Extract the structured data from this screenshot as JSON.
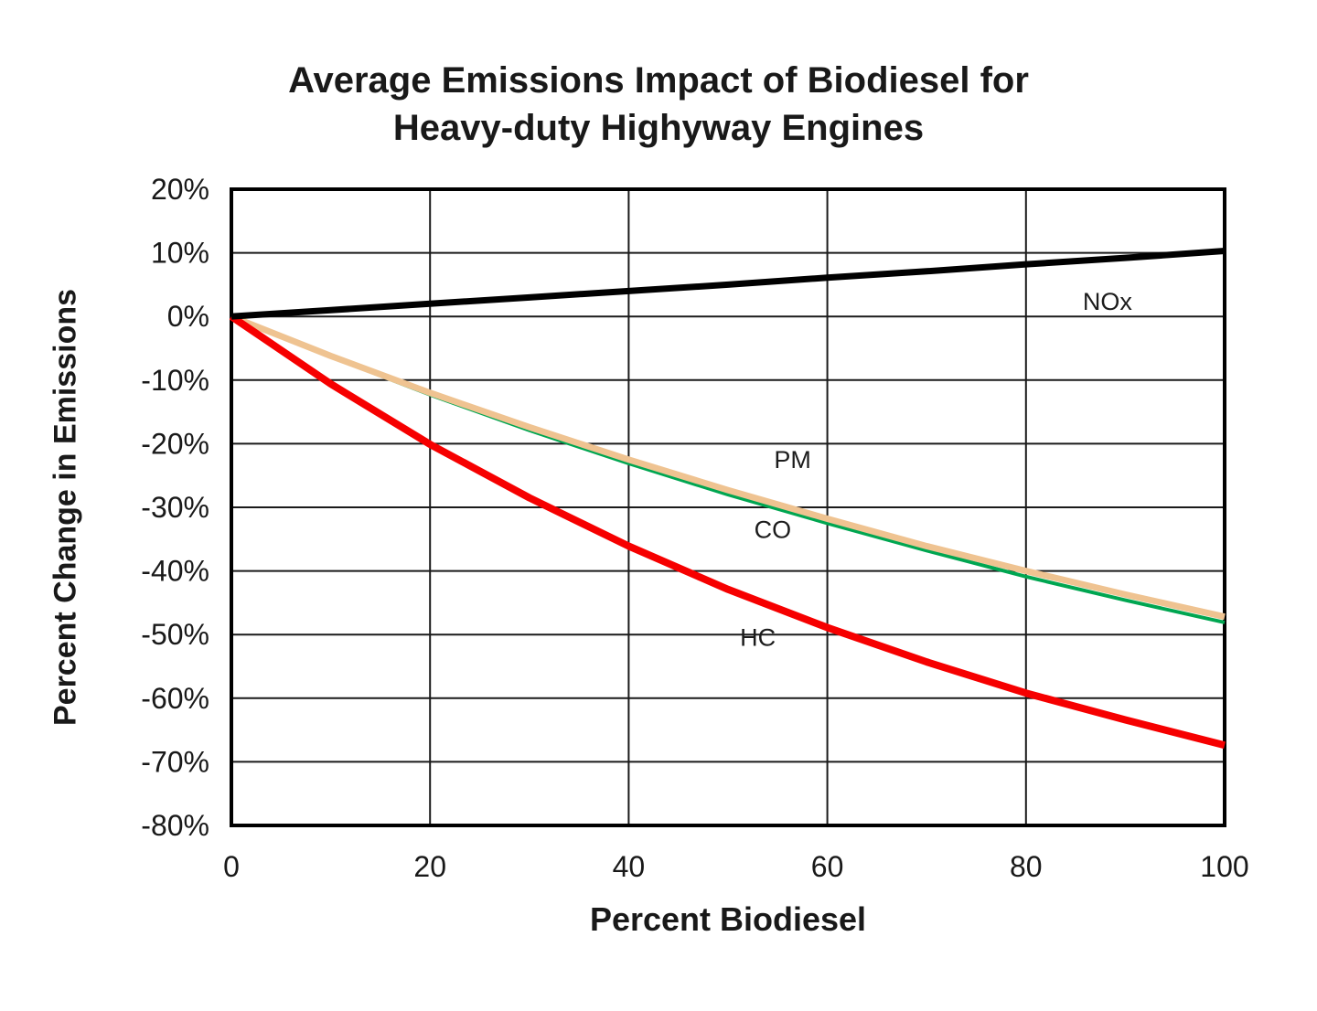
{
  "title": {
    "line1": "Average Emissions Impact of Biodiesel for",
    "line2": "Heavy-duty Highyway Engines"
  },
  "chart_data": {
    "type": "line",
    "title": "Average Emissions Impact of Biodiesel for Heavy-duty Highyway Engines",
    "xlabel": "Percent Biodiesel",
    "ylabel": "Percent Change in Emissions",
    "xlim": [
      0,
      100
    ],
    "ylim": [
      -80,
      20
    ],
    "grid": true,
    "legend": "inline-labels",
    "x_ticks": [
      {
        "value": 0,
        "label": "0"
      },
      {
        "value": 20,
        "label": "20"
      },
      {
        "value": 40,
        "label": "40"
      },
      {
        "value": 60,
        "label": "60"
      },
      {
        "value": 80,
        "label": "80"
      },
      {
        "value": 100,
        "label": "100"
      }
    ],
    "y_ticks": [
      {
        "value": 20,
        "label": "20%"
      },
      {
        "value": 10,
        "label": "10%"
      },
      {
        "value": 0,
        "label": "0%"
      },
      {
        "value": -10,
        "label": "-10%"
      },
      {
        "value": -20,
        "label": "-20%"
      },
      {
        "value": -30,
        "label": "-30%"
      },
      {
        "value": -40,
        "label": "-40%"
      },
      {
        "value": -50,
        "label": "-50%"
      },
      {
        "value": -60,
        "label": "-60%"
      },
      {
        "value": -70,
        "label": "-70%"
      },
      {
        "value": -80,
        "label": "-80%"
      }
    ],
    "x": [
      0,
      10,
      20,
      30,
      40,
      50,
      60,
      70,
      80,
      90,
      100
    ],
    "series": [
      {
        "name": "CO",
        "color": "#00a651",
        "stroke_width": 4,
        "values": [
          0,
          -6.3,
          -12.3,
          -17.9,
          -23.1,
          -28.0,
          -32.5,
          -36.8,
          -40.9,
          -44.6,
          -48.1
        ],
        "label": {
          "text": "CO",
          "x": 54.5,
          "y": -33.5
        }
      },
      {
        "name": "PM",
        "color": "#efc391",
        "stroke_width": 7,
        "values": [
          0,
          -6.2,
          -12.0,
          -17.4,
          -22.5,
          -27.3,
          -31.8,
          -36.1,
          -40.0,
          -43.7,
          -47.2
        ],
        "label": {
          "text": "PM",
          "x": 56.5,
          "y": -22.5
        }
      },
      {
        "name": "HC",
        "color": "#f60000",
        "stroke_width": 8,
        "values": [
          0,
          -10.6,
          -20.1,
          -28.5,
          -36.1,
          -42.9,
          -48.9,
          -54.3,
          -59.2,
          -63.4,
          -67.4
        ],
        "label": {
          "text": "HC",
          "x": 53.0,
          "y": -50.5
        }
      },
      {
        "name": "NOx",
        "color": "#000000",
        "stroke_width": 7,
        "values": [
          0,
          1.0,
          2.0,
          3.0,
          4.0,
          5.0,
          6.1,
          7.1,
          8.2,
          9.2,
          10.3
        ],
        "label": {
          "text": "NOx",
          "x": 88.2,
          "y": 2.3
        }
      }
    ]
  }
}
